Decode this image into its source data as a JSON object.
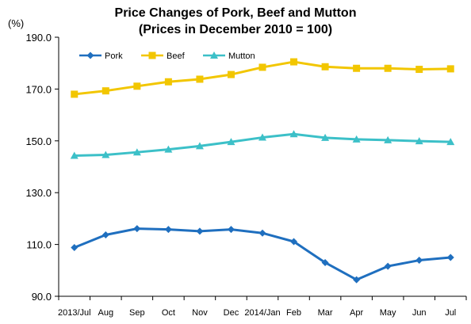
{
  "chart_data": {
    "type": "line",
    "title": "Price Changes of Pork, Beef and Mutton",
    "subtitle": "(Prices in December 2010 = 100)",
    "unit_label": "(%)",
    "categories": [
      "2013/Jul",
      "Aug",
      "Sep",
      "Oct",
      "Nov",
      "Dec",
      "2014/Jan",
      "Feb",
      "Mar",
      "Apr",
      "May",
      "Jun",
      "Jul"
    ],
    "ylim": [
      90,
      190
    ],
    "yticks": [
      "190.0",
      "170.0",
      "150.0",
      "130.0",
      "110.0",
      "90.0"
    ],
    "ytick_values": [
      190,
      170,
      150,
      130,
      110,
      90
    ],
    "grid": false,
    "legend_position": "top-left",
    "series": [
      {
        "name": "Pork",
        "color": "#1f6fbf",
        "marker": "diamond",
        "values": [
          108.8,
          113.7,
          116.1,
          115.8,
          115.1,
          115.8,
          114.4,
          111.1,
          103.0,
          96.4,
          101.6,
          103.9,
          105.0
        ]
      },
      {
        "name": "Beef",
        "color": "#f2c600",
        "marker": "square",
        "values": [
          168.0,
          169.3,
          171.1,
          172.8,
          173.8,
          175.6,
          178.4,
          180.5,
          178.6,
          178.0,
          178.0,
          177.6,
          177.8
        ]
      },
      {
        "name": "Mutton",
        "color": "#3cc0c8",
        "marker": "triangle",
        "values": [
          144.3,
          144.6,
          145.6,
          146.7,
          148.0,
          149.6,
          151.3,
          152.6,
          151.2,
          150.6,
          150.3,
          149.9,
          149.6
        ]
      }
    ]
  }
}
